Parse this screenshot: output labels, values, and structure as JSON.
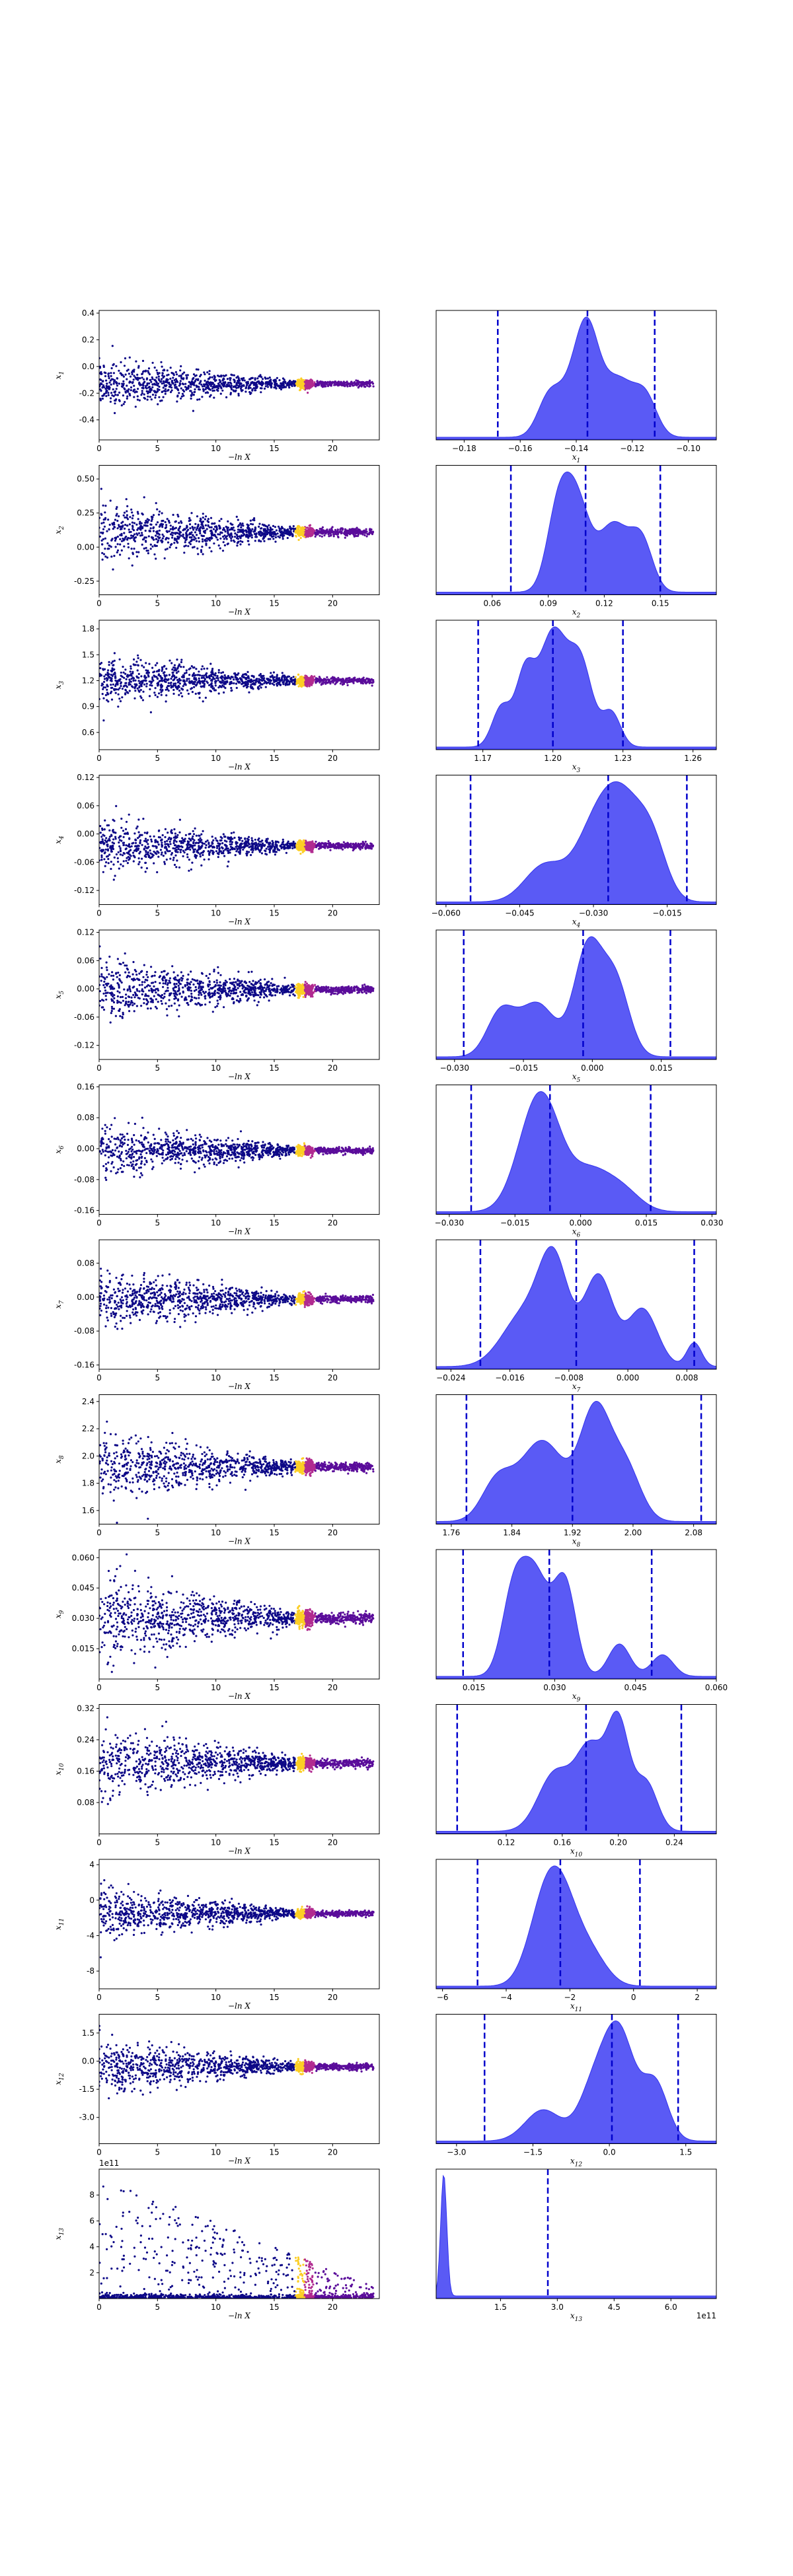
{
  "chart_data": {
    "type": "scatter+kde",
    "description": "Nested-sampling trace (left) and marginal posterior KDE (right) for 13 parameters",
    "scatter_xlabel": "−ln X",
    "scatter_xticks": [
      "0",
      "5",
      "10",
      "15",
      "20"
    ],
    "scatter_xlim": [
      0,
      24
    ],
    "colors": {
      "accent": "#0000cc",
      "kde_fill": "#5a5af5",
      "kde_line": "#3333ee",
      "trace_cold": "#0d0887",
      "trace_mid": "#b12a90",
      "trace_hot": "#fcce25"
    },
    "rows": [
      {
        "param": "x",
        "sub": "1",
        "scatter_ylim": [
          -0.55,
          0.42
        ],
        "scatter_yticks": [
          "0.4",
          "0.2",
          "0.0",
          "-0.2",
          "-0.4"
        ],
        "yvals": [
          0.4,
          0.2,
          0.0,
          -0.2,
          -0.4
        ],
        "center": -0.13,
        "spread": 0.16,
        "kde_xlim": [
          -0.19,
          -0.09
        ],
        "kde_xticks": [
          "−0.18",
          "−0.16",
          "−0.14",
          "−0.12",
          "−0.10"
        ],
        "kde_xvals": [
          -0.18,
          -0.16,
          -0.14,
          -0.12,
          -0.1
        ],
        "quantiles": [
          -0.168,
          -0.136,
          -0.112
        ],
        "peaks": [
          [
            -0.14,
            0.8,
            0.006
          ],
          [
            -0.136,
            1.0,
            0.004
          ],
          [
            -0.125,
            0.85,
            0.006
          ],
          [
            -0.15,
            0.5,
            0.004
          ],
          [
            -0.115,
            0.5,
            0.004
          ]
        ]
      },
      {
        "param": "x",
        "sub": "2",
        "scatter_ylim": [
          -0.35,
          0.6
        ],
        "scatter_yticks": [
          "0.50",
          "0.25",
          "0.00",
          "-0.25"
        ],
        "yvals": [
          0.5,
          0.25,
          0.0,
          -0.25
        ],
        "center": 0.11,
        "spread": 0.2,
        "kde_xlim": [
          0.03,
          0.18
        ],
        "kde_xticks": [
          "0.06",
          "0.09",
          "0.12",
          "0.15"
        ],
        "kde_xvals": [
          0.06,
          0.09,
          0.12,
          0.15
        ],
        "quantiles": [
          0.07,
          0.11,
          0.15
        ],
        "peaks": [
          [
            0.105,
            1.0,
            0.007
          ],
          [
            0.095,
            0.8,
            0.006
          ],
          [
            0.125,
            0.75,
            0.008
          ],
          [
            0.14,
            0.55,
            0.006
          ]
        ]
      },
      {
        "param": "x",
        "sub": "3",
        "scatter_ylim": [
          0.4,
          1.9
        ],
        "scatter_yticks": [
          "1.8",
          "1.5",
          "1.2",
          "0.9",
          "0.6"
        ],
        "yvals": [
          1.8,
          1.5,
          1.2,
          0.9,
          0.6
        ],
        "center": 1.2,
        "spread": 0.25,
        "kde_xlim": [
          1.15,
          1.27
        ],
        "kde_xticks": [
          "1.17",
          "1.20",
          "1.23",
          "1.26"
        ],
        "kde_xvals": [
          1.17,
          1.2,
          1.23,
          1.26
        ],
        "quantiles": [
          1.168,
          1.2,
          1.23
        ],
        "peaks": [
          [
            1.2,
            1.0,
            0.006
          ],
          [
            1.188,
            0.6,
            0.004
          ],
          [
            1.212,
            0.7,
            0.005
          ],
          [
            1.178,
            0.35,
            0.004
          ],
          [
            1.225,
            0.3,
            0.004
          ]
        ]
      },
      {
        "param": "x",
        "sub": "4",
        "scatter_ylim": [
          -0.15,
          0.125
        ],
        "scatter_yticks": [
          "0.12",
          "0.06",
          "0.00",
          "-0.06",
          "-0.12"
        ],
        "yvals": [
          0.12,
          0.06,
          0.0,
          -0.06,
          -0.12
        ],
        "center": -0.025,
        "spread": 0.05,
        "kde_xlim": [
          -0.062,
          -0.005
        ],
        "kde_xticks": [
          "−0.060",
          "−0.045",
          "−0.030",
          "−0.015"
        ],
        "kde_xvals": [
          -0.06,
          -0.045,
          -0.03,
          -0.015
        ],
        "quantiles": [
          -0.055,
          -0.027,
          -0.011
        ],
        "peaks": [
          [
            -0.024,
            1.0,
            0.004
          ],
          [
            -0.03,
            0.7,
            0.004
          ],
          [
            -0.018,
            0.55,
            0.003
          ],
          [
            -0.04,
            0.4,
            0.004
          ]
        ]
      },
      {
        "param": "x",
        "sub": "5",
        "scatter_ylim": [
          -0.15,
          0.125
        ],
        "scatter_yticks": [
          "0.12",
          "0.06",
          "0.00",
          "-0.06",
          "-0.12"
        ],
        "yvals": [
          0.12,
          0.06,
          0.0,
          -0.06,
          -0.12
        ],
        "center": -0.002,
        "spread": 0.06,
        "kde_xlim": [
          -0.034,
          0.027
        ],
        "kde_xticks": [
          "−0.030",
          "−0.015",
          "0.000",
          "0.015"
        ],
        "kde_xvals": [
          -0.03,
          -0.015,
          0.0,
          0.015
        ],
        "quantiles": [
          -0.028,
          -0.002,
          0.017
        ],
        "peaks": [
          [
            -0.001,
            1.0,
            0.003
          ],
          [
            0.005,
            0.7,
            0.003
          ],
          [
            -0.012,
            0.5,
            0.004
          ],
          [
            -0.02,
            0.4,
            0.003
          ]
        ]
      },
      {
        "param": "x",
        "sub": "6",
        "scatter_ylim": [
          -0.17,
          0.165
        ],
        "scatter_yticks": [
          "0.16",
          "0.08",
          "0.00",
          "-0.08",
          "-0.16"
        ],
        "yvals": [
          0.16,
          0.08,
          0.0,
          -0.08,
          -0.16
        ],
        "center": -0.005,
        "spread": 0.06,
        "kde_xlim": [
          -0.033,
          0.031
        ],
        "kde_xticks": [
          "−0.030",
          "−0.015",
          "0.000",
          "0.015",
          "0.030"
        ],
        "kde_xvals": [
          -0.03,
          -0.015,
          0.0,
          0.015,
          0.03
        ],
        "quantiles": [
          -0.025,
          -0.007,
          0.016
        ],
        "peaks": [
          [
            -0.008,
            1.0,
            0.004
          ],
          [
            -0.012,
            0.6,
            0.004
          ],
          [
            0.002,
            0.5,
            0.005
          ],
          [
            0.01,
            0.2,
            0.004
          ]
        ]
      },
      {
        "param": "x",
        "sub": "7",
        "scatter_ylim": [
          -0.17,
          0.135
        ],
        "scatter_yticks": [
          "0.08",
          "0.00",
          "-0.08",
          "-0.16"
        ],
        "yvals": [
          0.08,
          0.0,
          -0.08,
          -0.16
        ],
        "center": -0.005,
        "spread": 0.06,
        "kde_xlim": [
          -0.026,
          0.012
        ],
        "kde_xticks": [
          "−0.024",
          "−0.016",
          "−0.008",
          "0.000",
          "0.008"
        ],
        "kde_xvals": [
          -0.024,
          -0.016,
          -0.008,
          0.0,
          0.008
        ],
        "quantiles": [
          -0.02,
          -0.007,
          0.009
        ],
        "peaks": [
          [
            -0.01,
            1.0,
            0.002
          ],
          [
            -0.004,
            0.95,
            0.002
          ],
          [
            -0.014,
            0.55,
            0.003
          ],
          [
            0.002,
            0.6,
            0.002
          ],
          [
            0.009,
            0.25,
            0.001
          ]
        ]
      },
      {
        "param": "x",
        "sub": "8",
        "scatter_ylim": [
          1.5,
          2.45
        ],
        "scatter_yticks": [
          "2.4",
          "2.2",
          "2.0",
          "1.8",
          "1.6"
        ],
        "yvals": [
          2.4,
          2.2,
          2.0,
          1.8,
          1.6
        ],
        "center": 1.92,
        "spread": 0.22,
        "kde_xlim": [
          1.74,
          2.11
        ],
        "kde_xticks": [
          "1.76",
          "1.84",
          "1.92",
          "2.00",
          "2.08"
        ],
        "kde_xvals": [
          1.76,
          1.84,
          1.92,
          2.0,
          2.08
        ],
        "quantiles": [
          1.78,
          1.92,
          2.09
        ],
        "peaks": [
          [
            1.95,
            1.0,
            0.02
          ],
          [
            1.88,
            0.75,
            0.03
          ],
          [
            1.99,
            0.5,
            0.02
          ],
          [
            1.82,
            0.35,
            0.02
          ]
        ]
      },
      {
        "param": "x",
        "sub": "9",
        "scatter_ylim": [
          0.0,
          0.064
        ],
        "scatter_yticks": [
          "0.060",
          "0.045",
          "0.030",
          "0.015"
        ],
        "yvals": [
          0.06,
          0.045,
          0.03,
          0.015
        ],
        "center": 0.03,
        "spread": 0.02,
        "kde_xlim": [
          0.008,
          0.06
        ],
        "kde_xticks": [
          "0.015",
          "0.030",
          "0.045",
          "0.060"
        ],
        "kde_xvals": [
          0.015,
          0.03,
          0.045,
          0.06
        ],
        "quantiles": [
          0.013,
          0.029,
          0.048
        ],
        "peaks": [
          [
            0.026,
            1.0,
            0.003
          ],
          [
            0.032,
            0.8,
            0.002
          ],
          [
            0.022,
            0.5,
            0.002
          ],
          [
            0.042,
            0.3,
            0.002
          ],
          [
            0.05,
            0.2,
            0.002
          ]
        ]
      },
      {
        "param": "x",
        "sub": "10",
        "scatter_ylim": [
          0.0,
          0.33
        ],
        "scatter_yticks": [
          "0.32",
          "0.24",
          "0.16",
          "0.08"
        ],
        "yvals": [
          0.32,
          0.24,
          0.16,
          0.08
        ],
        "center": 0.18,
        "spread": 0.08,
        "kde_xlim": [
          0.07,
          0.27
        ],
        "kde_xticks": [
          "0.12",
          "0.16",
          "0.20",
          "0.24"
        ],
        "kde_xvals": [
          0.12,
          0.16,
          0.2,
          0.24
        ],
        "quantiles": [
          0.085,
          0.177,
          0.245
        ],
        "peaks": [
          [
            0.2,
            1.0,
            0.008
          ],
          [
            0.18,
            0.75,
            0.01
          ],
          [
            0.155,
            0.55,
            0.012
          ],
          [
            0.22,
            0.45,
            0.008
          ]
        ]
      },
      {
        "param": "x",
        "sub": "11",
        "scatter_ylim": [
          -10,
          4.6
        ],
        "scatter_yticks": [
          "4",
          "0",
          "-4",
          "-8"
        ],
        "yvals": [
          4,
          0,
          -4,
          -8
        ],
        "center": -1.5,
        "spread": 2.5,
        "kde_xlim": [
          -6.2,
          2.6
        ],
        "kde_xticks": [
          "−6",
          "−4",
          "−2",
          "0",
          "2"
        ],
        "kde_xvals": [
          -6,
          -4,
          -2,
          0,
          2
        ],
        "quantiles": [
          -4.9,
          -2.3,
          0.2
        ],
        "peaks": [
          [
            -2.3,
            1.0,
            0.55
          ],
          [
            -2.9,
            0.55,
            0.5
          ],
          [
            -1.3,
            0.3,
            0.5
          ]
        ]
      },
      {
        "param": "x",
        "sub": "12",
        "scatter_ylim": [
          -4.4,
          2.5
        ],
        "scatter_yticks": [
          "1.5",
          "0.0",
          "-1.5",
          "-3.0"
        ],
        "yvals": [
          1.5,
          0.0,
          -1.5,
          -3.0
        ],
        "center": -0.3,
        "spread": 1.3,
        "kde_xlim": [
          -3.4,
          2.1
        ],
        "kde_xticks": [
          "−3.0",
          "−1.5",
          "0.0",
          "1.5"
        ],
        "kde_xvals": [
          -3.0,
          -1.5,
          0.0,
          1.5
        ],
        "quantiles": [
          -2.45,
          0.05,
          1.35
        ],
        "peaks": [
          [
            0.2,
            1.0,
            0.3
          ],
          [
            -0.3,
            0.5,
            0.3
          ],
          [
            -1.3,
            0.3,
            0.35
          ],
          [
            0.9,
            0.55,
            0.25
          ]
        ]
      },
      {
        "param": "x",
        "sub": "13",
        "scatter_ylim": [
          0,
          10
        ],
        "scatter_yticks": [
          "8",
          "6",
          "4",
          "2"
        ],
        "yvals": [
          8,
          6,
          4,
          2
        ],
        "scatter_offset": "1e11",
        "center": 0.3,
        "spread": 2.0,
        "kde_xlim": [
          -0.2,
          7.2
        ],
        "kde_xticks": [
          "1.5",
          "3.0",
          "4.5",
          "6.0"
        ],
        "kde_xvals": [
          1.5,
          3.0,
          4.5,
          6.0
        ],
        "kde_offset": "1e11",
        "quantiles": [
          2.75
        ],
        "peaks": [
          [
            0.0,
            1.0,
            0.08
          ]
        ]
      }
    ]
  }
}
